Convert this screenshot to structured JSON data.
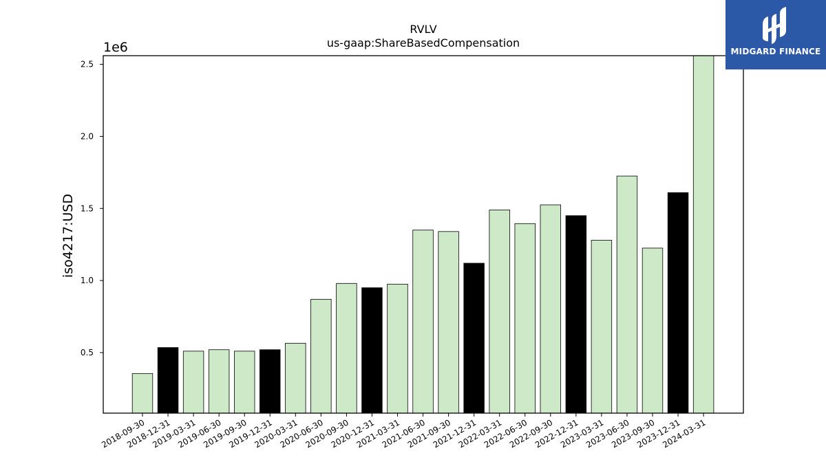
{
  "chart_data": {
    "type": "bar",
    "title": "RVLV",
    "subtitle": "us-gaap:ShareBasedCompensation",
    "ylabel": "iso4217:USD",
    "xlabel": "",
    "y_offset_text": "1e6",
    "ylim": [
      80000,
      2560000
    ],
    "yticks": [
      500000,
      1000000,
      1500000,
      2000000,
      2500000
    ],
    "ytick_labels": [
      "0.5",
      "1.0",
      "1.5",
      "2.0",
      "2.5"
    ],
    "categories": [
      "2018-09-30",
      "2018-12-31",
      "2019-03-31",
      "2019-06-30",
      "2019-09-30",
      "2019-12-31",
      "2020-03-31",
      "2020-06-30",
      "2020-09-30",
      "2020-12-31",
      "2021-03-31",
      "2021-06-30",
      "2021-09-30",
      "2021-12-31",
      "2022-03-31",
      "2022-06-30",
      "2022-09-30",
      "2022-12-31",
      "2023-03-31",
      "2023-06-30",
      "2023-09-30",
      "2023-12-31",
      "2024-03-31"
    ],
    "values": [
      355000,
      535000,
      510000,
      520000,
      510000,
      520000,
      565000,
      870000,
      980000,
      950000,
      975000,
      1350000,
      1340000,
      1120000,
      1490000,
      1395000,
      1525000,
      1450000,
      1280000,
      1725000,
      1225000,
      1610000,
      2560000
    ],
    "highlight": [
      false,
      true,
      false,
      false,
      false,
      true,
      false,
      false,
      false,
      true,
      false,
      false,
      false,
      true,
      false,
      false,
      false,
      true,
      false,
      false,
      false,
      true,
      false
    ],
    "colors": {
      "normal": "#cde9c7",
      "highlight": "#000000",
      "edge": "#000000"
    },
    "grid": false
  },
  "logo": {
    "text": "MIDGARD FINANCE",
    "background": "#2c58a8"
  }
}
